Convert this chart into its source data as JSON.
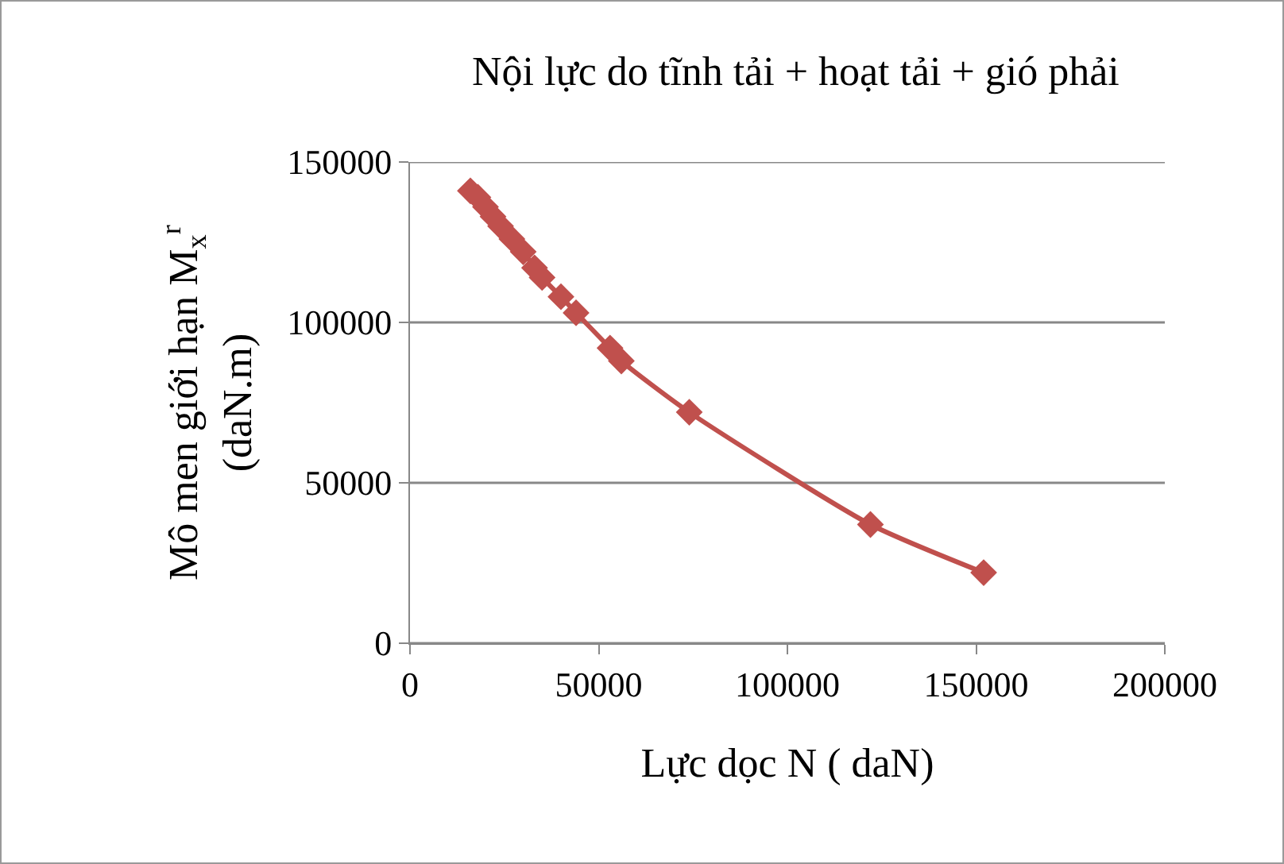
{
  "chart_data": {
    "type": "line",
    "title": "Nội lực do tĩnh tải + hoạt tải + gió phải",
    "xlabel": "Lực dọc N ( daN)",
    "ylabel": "Mô men giới hạn M$_{x}$$^{r}$\n(daN.m)",
    "series": [
      {
        "color": "#c0504d",
        "x": [
          16000,
          18000,
          20000,
          22000,
          24000,
          27000,
          30000,
          33000,
          35000,
          40000,
          44000,
          53000,
          56000,
          74000,
          122000,
          152000
        ],
        "values": [
          141000,
          139000,
          136000,
          133000,
          130000,
          126000,
          122000,
          117000,
          114000,
          108000,
          103000,
          92000,
          88000,
          72000,
          37000,
          22000
        ]
      }
    ],
    "xlim": [
      0,
      200000
    ],
    "xticks": [
      0,
      50000,
      100000,
      150000,
      200000
    ],
    "ylim": [
      0,
      150000
    ],
    "yticks": [
      0,
      50000,
      100000,
      150000
    ],
    "grid": "y",
    "marker": "diamond",
    "line_style": "solid"
  }
}
